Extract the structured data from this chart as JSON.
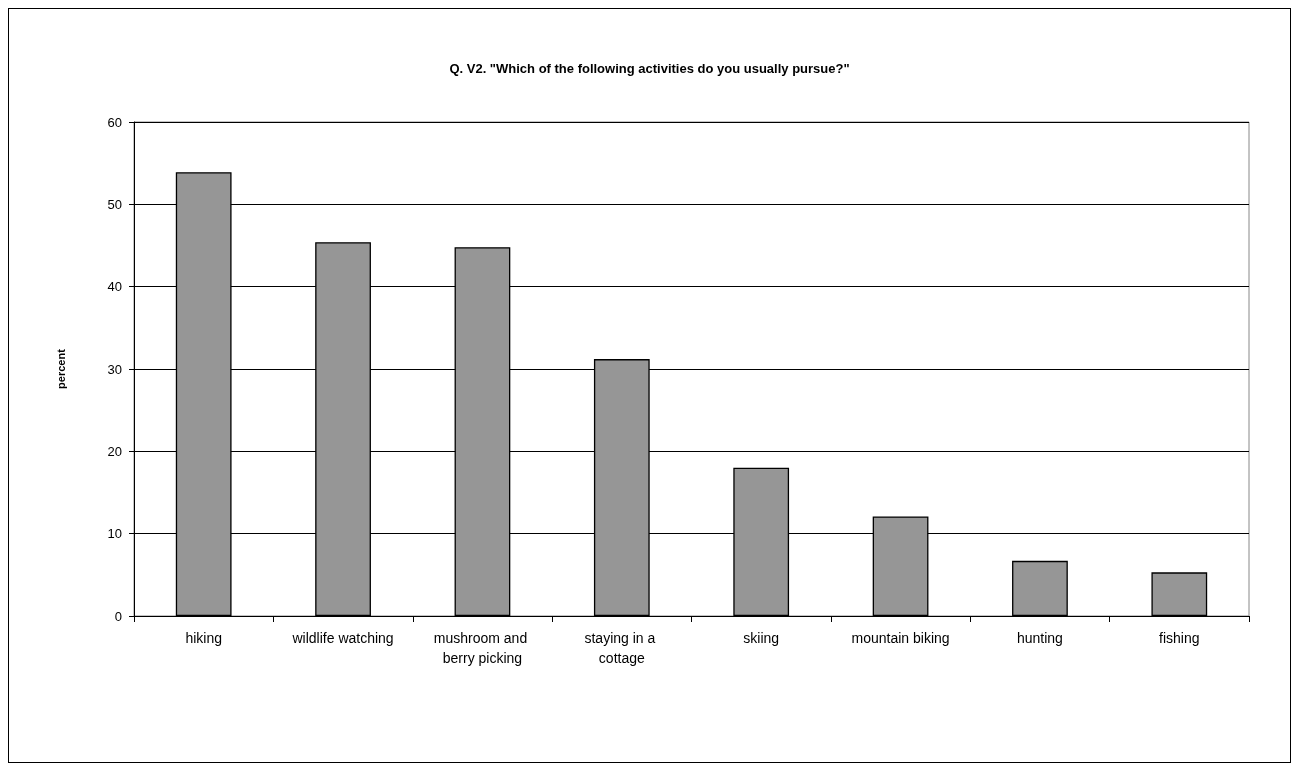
{
  "chart_data": {
    "type": "bar",
    "title": "Q. V2. \"Which of the following activities do you usually pursue?\"",
    "ylabel": "percent",
    "categories": [
      "hiking",
      "wildlife watching",
      "mushroom and berry picking",
      "staying in a cottage",
      "skiing",
      "mountain biking",
      "hunting",
      "fishing"
    ],
    "values": [
      53.9,
      45.4,
      44.8,
      31.2,
      18.0,
      12.1,
      6.7,
      5.3
    ],
    "color": "#969696",
    "ylim": [
      0,
      60
    ],
    "yticks": [
      0,
      10,
      20,
      30,
      40,
      50,
      60
    ],
    "grid": "y"
  }
}
